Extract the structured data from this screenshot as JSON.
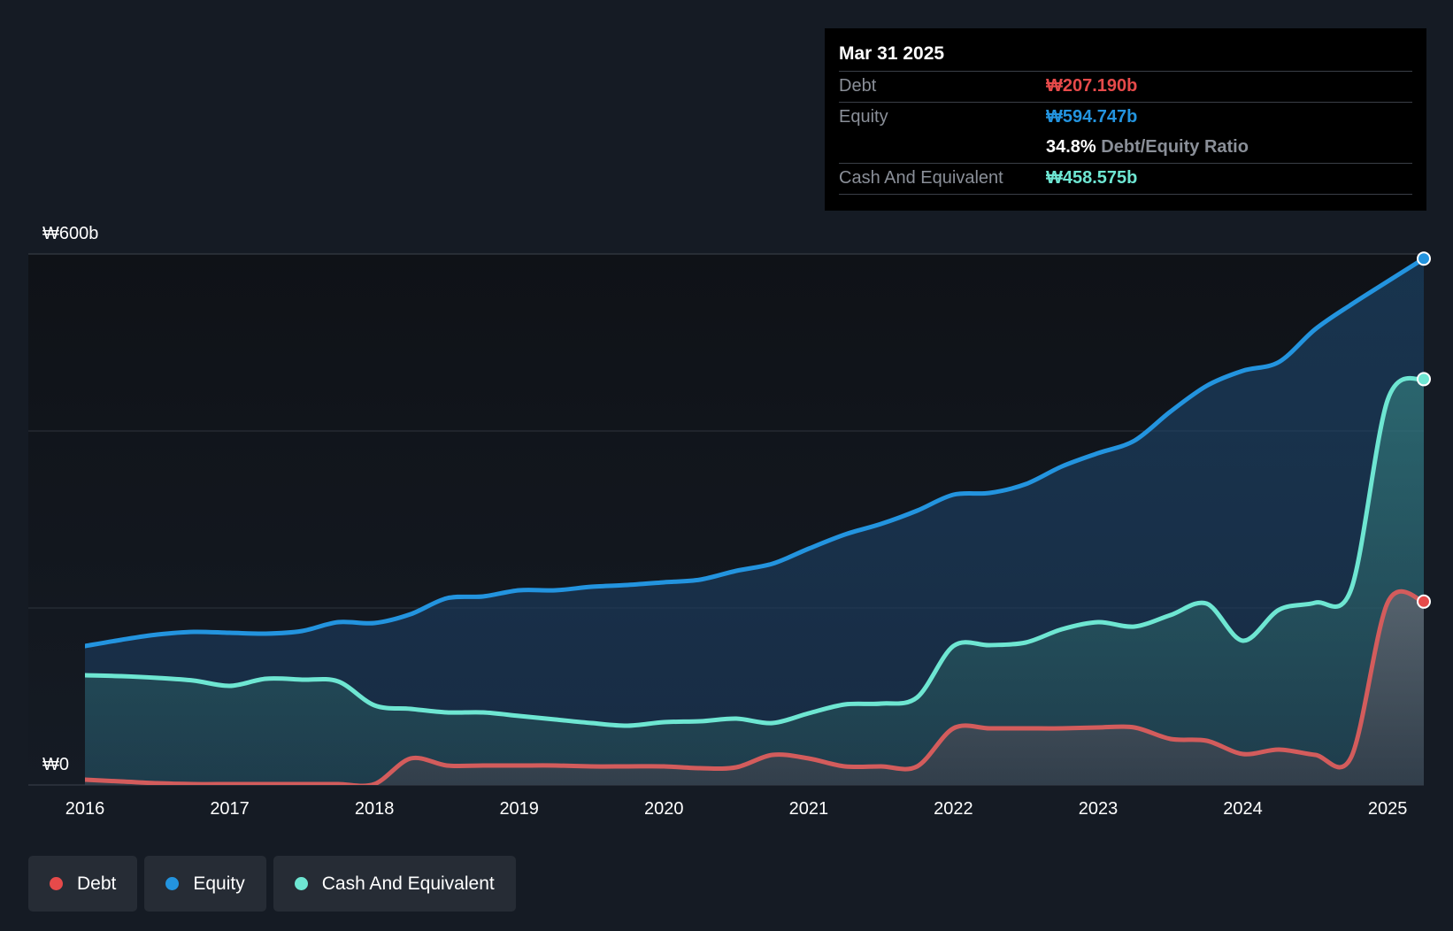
{
  "colors": {
    "background": "#151b24",
    "debt": "#e64a4a",
    "debt_line": "#d35c5c",
    "equity": "#2394df",
    "cash": "#6ee6d2"
  },
  "tooltip": {
    "date": "Mar 31 2025",
    "debt_label": "Debt",
    "debt_value": "₩207.190b",
    "equity_label": "Equity",
    "equity_value": "₩594.747b",
    "ratio_pct": "34.8%",
    "ratio_label": "Debt/Equity Ratio",
    "cash_label": "Cash And Equivalent",
    "cash_value": "₩458.575b"
  },
  "legend": {
    "items": [
      {
        "label": "Debt",
        "icon": "dot-icon"
      },
      {
        "label": "Equity",
        "icon": "dot-icon"
      },
      {
        "label": "Cash And Equivalent",
        "icon": "dot-icon"
      }
    ]
  },
  "chart_data": {
    "type": "area",
    "title": "",
    "xlabel": "",
    "ylabel": "",
    "x_range": [
      2016.0,
      2025.25
    ],
    "ylim": [
      0,
      600
    ],
    "y_tick_labels": [
      "₩600b",
      "₩0"
    ],
    "y_gridlines": [
      0,
      200,
      400,
      600
    ],
    "x_tick_labels": [
      "2016",
      "2017",
      "2018",
      "2019",
      "2020",
      "2021",
      "2022",
      "2023",
      "2024",
      "2025"
    ],
    "x_tick_values": [
      2016,
      2017,
      2018,
      2019,
      2020,
      2021,
      2022,
      2023,
      2024,
      2025
    ],
    "series": [
      {
        "name": "Equity",
        "points": [
          [
            2016.0,
            157
          ],
          [
            2016.25,
            164
          ],
          [
            2016.5,
            170
          ],
          [
            2016.75,
            173
          ],
          [
            2017.0,
            172
          ],
          [
            2017.25,
            171
          ],
          [
            2017.5,
            174
          ],
          [
            2017.75,
            184
          ],
          [
            2018.0,
            183
          ],
          [
            2018.25,
            193
          ],
          [
            2018.5,
            211
          ],
          [
            2018.75,
            213
          ],
          [
            2019.0,
            220
          ],
          [
            2019.25,
            220
          ],
          [
            2019.5,
            224
          ],
          [
            2019.75,
            226
          ],
          [
            2020.0,
            229
          ],
          [
            2020.25,
            232
          ],
          [
            2020.5,
            242
          ],
          [
            2020.75,
            250
          ],
          [
            2021.0,
            267
          ],
          [
            2021.25,
            283
          ],
          [
            2021.5,
            295
          ],
          [
            2021.75,
            310
          ],
          [
            2022.0,
            328
          ],
          [
            2022.25,
            330
          ],
          [
            2022.5,
            340
          ],
          [
            2022.75,
            360
          ],
          [
            2023.0,
            375
          ],
          [
            2023.25,
            389
          ],
          [
            2023.5,
            422
          ],
          [
            2023.75,
            451
          ],
          [
            2024.0,
            468
          ],
          [
            2024.25,
            478
          ],
          [
            2024.5,
            515
          ],
          [
            2024.75,
            543
          ],
          [
            2025.0,
            569
          ],
          [
            2025.25,
            594.747
          ]
        ]
      },
      {
        "name": "Cash And Equivalent",
        "points": [
          [
            2016.0,
            124
          ],
          [
            2016.25,
            123
          ],
          [
            2016.5,
            121
          ],
          [
            2016.75,
            118
          ],
          [
            2017.0,
            112
          ],
          [
            2017.25,
            120
          ],
          [
            2017.5,
            119
          ],
          [
            2017.75,
            117
          ],
          [
            2018.0,
            90
          ],
          [
            2018.25,
            86
          ],
          [
            2018.5,
            82
          ],
          [
            2018.75,
            82
          ],
          [
            2019.0,
            78
          ],
          [
            2019.25,
            74
          ],
          [
            2019.5,
            70
          ],
          [
            2019.75,
            67
          ],
          [
            2020.0,
            71
          ],
          [
            2020.25,
            72
          ],
          [
            2020.5,
            75
          ],
          [
            2020.75,
            70
          ],
          [
            2021.0,
            81
          ],
          [
            2021.25,
            91
          ],
          [
            2021.5,
            92
          ],
          [
            2021.75,
            99
          ],
          [
            2022.0,
            157
          ],
          [
            2022.25,
            158
          ],
          [
            2022.5,
            161
          ],
          [
            2022.75,
            176
          ],
          [
            2023.0,
            184
          ],
          [
            2023.25,
            179
          ],
          [
            2023.5,
            192
          ],
          [
            2023.75,
            205
          ],
          [
            2024.0,
            163
          ],
          [
            2024.25,
            198
          ],
          [
            2024.5,
            206
          ],
          [
            2024.75,
            222
          ],
          [
            2025.0,
            435
          ],
          [
            2025.25,
            458.575
          ]
        ]
      },
      {
        "name": "Debt",
        "points": [
          [
            2016.0,
            6
          ],
          [
            2016.25,
            4
          ],
          [
            2016.5,
            2
          ],
          [
            2016.75,
            1
          ],
          [
            2017.0,
            1
          ],
          [
            2017.25,
            1
          ],
          [
            2017.5,
            1
          ],
          [
            2017.75,
            1
          ],
          [
            2018.0,
            1
          ],
          [
            2018.25,
            30
          ],
          [
            2018.5,
            22
          ],
          [
            2018.75,
            22
          ],
          [
            2019.0,
            22
          ],
          [
            2019.25,
            22
          ],
          [
            2019.5,
            21
          ],
          [
            2019.75,
            21
          ],
          [
            2020.0,
            21
          ],
          [
            2020.25,
            19
          ],
          [
            2020.5,
            20
          ],
          [
            2020.75,
            34
          ],
          [
            2021.0,
            30
          ],
          [
            2021.25,
            21
          ],
          [
            2021.5,
            21
          ],
          [
            2021.75,
            21
          ],
          [
            2022.0,
            64
          ],
          [
            2022.25,
            64
          ],
          [
            2022.5,
            64
          ],
          [
            2022.75,
            64
          ],
          [
            2023.0,
            65
          ],
          [
            2023.25,
            65
          ],
          [
            2023.5,
            52
          ],
          [
            2023.75,
            50
          ],
          [
            2024.0,
            35
          ],
          [
            2024.25,
            40
          ],
          [
            2024.5,
            34
          ],
          [
            2024.75,
            32
          ],
          [
            2025.0,
            206
          ],
          [
            2025.25,
            207.19
          ]
        ]
      }
    ]
  }
}
